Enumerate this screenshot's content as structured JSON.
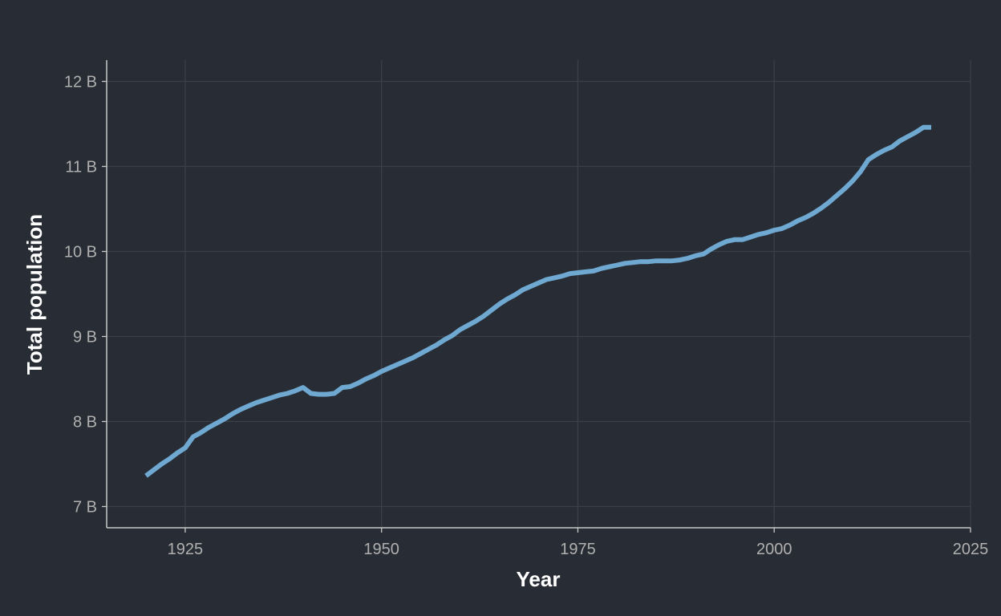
{
  "chart_data": {
    "type": "line",
    "title": "",
    "xlabel": "Year",
    "ylabel": "Total population",
    "xlim": [
      1915,
      2025
    ],
    "ylim": [
      6.75,
      12.25
    ],
    "x_ticks": [
      1925,
      1950,
      1975,
      2000,
      2025
    ],
    "x_tick_labels": [
      "1925",
      "1950",
      "1975",
      "2000",
      "2025"
    ],
    "y_ticks": [
      7,
      8,
      9,
      10,
      11,
      12
    ],
    "y_tick_labels": [
      "7 B",
      "8 B",
      "9 B",
      "10 B",
      "11 B",
      "12 B"
    ],
    "grid": true,
    "legend": "none",
    "colors": {
      "background": "#282c34",
      "grid": "#3a3f48",
      "axis": "#c8c8c8",
      "line": "#6fa8d0"
    },
    "series": [
      {
        "x": [
          1920,
          1921,
          1922,
          1923,
          1924,
          1925,
          1926,
          1927,
          1928,
          1929,
          1930,
          1931,
          1932,
          1933,
          1934,
          1935,
          1936,
          1937,
          1938,
          1939,
          1940,
          1941,
          1942,
          1943,
          1944,
          1945,
          1946,
          1947,
          1948,
          1949,
          1950,
          1951,
          1952,
          1953,
          1954,
          1955,
          1956,
          1957,
          1958,
          1959,
          1960,
          1961,
          1962,
          1963,
          1964,
          1965,
          1966,
          1967,
          1968,
          1969,
          1970,
          1971,
          1972,
          1973,
          1974,
          1975,
          1976,
          1977,
          1978,
          1979,
          1980,
          1981,
          1982,
          1983,
          1984,
          1985,
          1986,
          1987,
          1988,
          1989,
          1990,
          1991,
          1992,
          1993,
          1994,
          1995,
          1996,
          1997,
          1998,
          1999,
          2000,
          2001,
          2002,
          2003,
          2004,
          2005,
          2006,
          2007,
          2008,
          2009,
          2010,
          2011,
          2012,
          2013,
          2014,
          2015,
          2016,
          2017,
          2018,
          2019,
          2020
        ],
        "y": [
          7.36,
          7.43,
          7.5,
          7.56,
          7.63,
          7.69,
          7.82,
          7.87,
          7.93,
          7.98,
          8.03,
          8.09,
          8.14,
          8.18,
          8.22,
          8.25,
          8.28,
          8.31,
          8.33,
          8.36,
          8.4,
          8.33,
          8.32,
          8.32,
          8.33,
          8.4,
          8.41,
          8.45,
          8.5,
          8.54,
          8.59,
          8.63,
          8.67,
          8.71,
          8.75,
          8.8,
          8.85,
          8.9,
          8.96,
          9.01,
          9.08,
          9.13,
          9.18,
          9.24,
          9.31,
          9.38,
          9.44,
          9.49,
          9.55,
          9.59,
          9.63,
          9.67,
          9.69,
          9.71,
          9.74,
          9.75,
          9.76,
          9.77,
          9.8,
          9.82,
          9.84,
          9.86,
          9.87,
          9.88,
          9.88,
          9.89,
          9.89,
          9.89,
          9.9,
          9.92,
          9.95,
          9.97,
          10.03,
          10.08,
          10.12,
          10.14,
          10.14,
          10.17,
          10.2,
          10.22,
          10.25,
          10.27,
          10.31,
          10.36,
          10.4,
          10.45,
          10.51,
          10.58,
          10.66,
          10.74,
          10.83,
          10.94,
          11.08,
          11.14,
          11.19,
          11.23,
          11.3,
          11.35,
          11.4,
          11.46,
          11.46
        ]
      }
    ]
  }
}
